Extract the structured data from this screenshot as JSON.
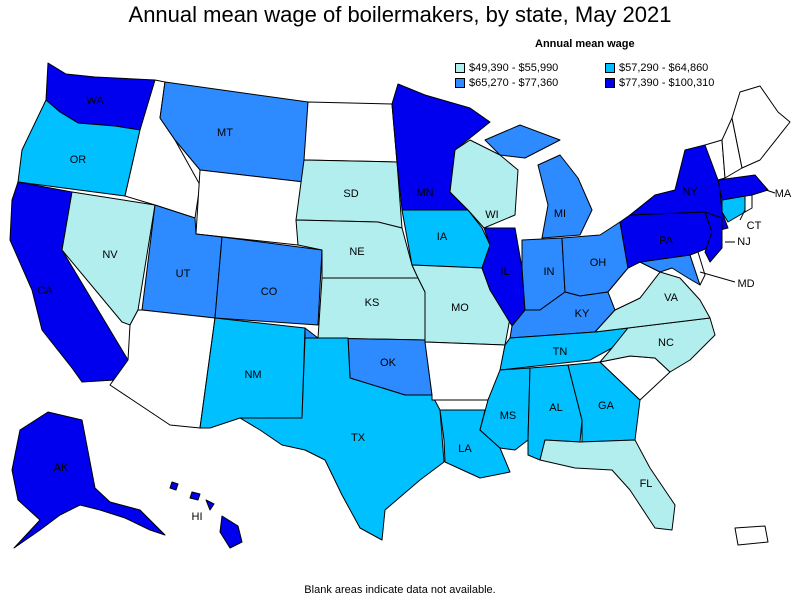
{
  "title": "Annual mean wage of boilermakers, by state, May 2021",
  "footnote": "Blank areas indicate data not available.",
  "legend": {
    "title": "Annual mean wage",
    "items": [
      {
        "label": "$49,390 - $55,990",
        "color": "#b2eeee"
      },
      {
        "label": "$57,290 - $64,860",
        "color": "#00c0ff"
      },
      {
        "label": "$65,270 - $77,360",
        "color": "#2e8bff"
      },
      {
        "label": "$77,390 - $100,310",
        "color": "#0000ee"
      }
    ]
  },
  "chart_data": {
    "type": "choropleth",
    "title": "Annual mean wage of boilermakers, by state, May 2021",
    "classes": [
      {
        "range": "$49,390 - $55,990",
        "color": "#b2eeee"
      },
      {
        "range": "$57,290 - $64,860",
        "color": "#00c0ff"
      },
      {
        "range": "$65,270 - $77,360",
        "color": "#2e8bff"
      },
      {
        "range": "$77,390 - $100,310",
        "color": "#0000ee"
      }
    ],
    "states": {
      "WA": 3,
      "OR": 1,
      "CA": 3,
      "NV": 0,
      "MT": 2,
      "UT": 2,
      "CO": 2,
      "NM": 1,
      "SD": 0,
      "NE": 0,
      "KS": 0,
      "OK": 2,
      "TX": 1,
      "MN": 3,
      "IA": 1,
      "MO": 0,
      "WI": 0,
      "IL": 3,
      "MI": 2,
      "IN": 2,
      "OH": 2,
      "KY": 2,
      "TN": 1,
      "MS": 1,
      "AL": 1,
      "GA": 1,
      "FL": 0,
      "LA": 1,
      "VA": 0,
      "NC": 0,
      "NY": 3,
      "PA": 3,
      "NJ": 3,
      "MD": 2,
      "CT": 1,
      "MA": 3,
      "AK": 3,
      "HI": 3
    },
    "no_data": [
      "ID",
      "WY",
      "ND",
      "AZ",
      "AR",
      "SC",
      "WV",
      "ME",
      "VT",
      "NH",
      "RI",
      "DE",
      "PR"
    ]
  },
  "state_labels": {
    "WA": "WA",
    "OR": "OR",
    "CA": "CA",
    "NV": "NV",
    "MT": "MT",
    "UT": "UT",
    "CO": "CO",
    "NM": "NM",
    "SD": "SD",
    "NE": "NE",
    "KS": "KS",
    "OK": "OK",
    "TX": "TX",
    "MN": "MN",
    "IA": "IA",
    "MO": "MO",
    "WI": "WI",
    "IL": "IL",
    "MI": "MI",
    "IN": "IN",
    "OH": "OH",
    "KY": "KY",
    "TN": "TN",
    "MS": "MS",
    "AL": "AL",
    "GA": "GA",
    "FL": "FL",
    "LA": "LA",
    "VA": "VA",
    "NC": "NC",
    "NY": "NY",
    "PA": "PA",
    "NJ": "NJ",
    "MD": "MD",
    "CT": "CT",
    "MA": "MA",
    "AK": "AK",
    "HI": "HI"
  }
}
